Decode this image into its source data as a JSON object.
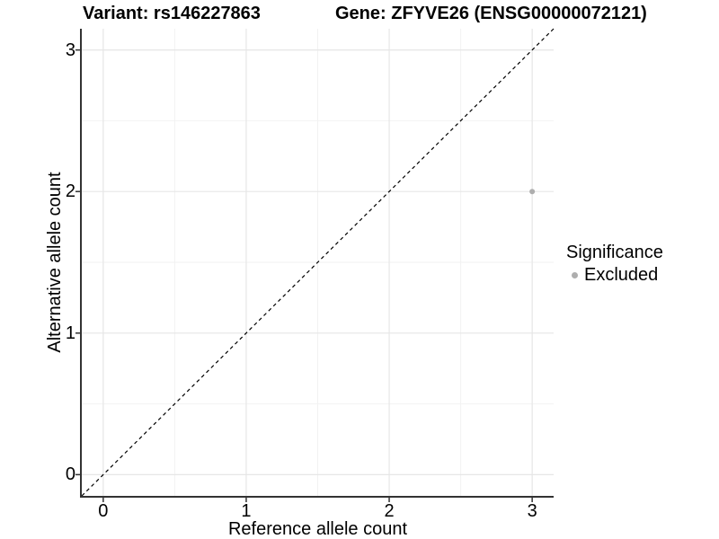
{
  "chart_data": {
    "type": "scatter",
    "title_left": "Variant: rs146227863",
    "title_right": "Gene: ZFYVE26 (ENSG00000072121)",
    "xlabel": "Reference allele count",
    "ylabel": "Alternative allele count",
    "xlim": [
      -0.15,
      3.15
    ],
    "ylim": [
      -0.15,
      3.15
    ],
    "x_ticks": [
      0,
      1,
      2,
      3
    ],
    "y_ticks": [
      0,
      1,
      2,
      3
    ],
    "x_minor_ticks": [
      0.5,
      1.5,
      2.5
    ],
    "y_minor_ticks": [
      0.5,
      1.5,
      2.5
    ],
    "grid": true,
    "legend_position": "right",
    "identity_line": {
      "style": "dashed",
      "color": "#000000",
      "from": -0.15,
      "to": 3.15
    },
    "series": [
      {
        "name": "Excluded",
        "color": "#aeaeae",
        "points": [
          {
            "x": 3,
            "y": 2
          }
        ]
      }
    ]
  },
  "legend": {
    "title": "Significance",
    "entries": [
      {
        "label": "Excluded",
        "color": "#aeaeae",
        "marker": "circle-icon"
      }
    ]
  },
  "colors": {
    "background": "#ffffff",
    "grid_major": "#e6e6e6",
    "grid_minor": "#f2f2f2",
    "axis_line": "#333333",
    "tick_mark": "#333333",
    "text": "#000000"
  }
}
